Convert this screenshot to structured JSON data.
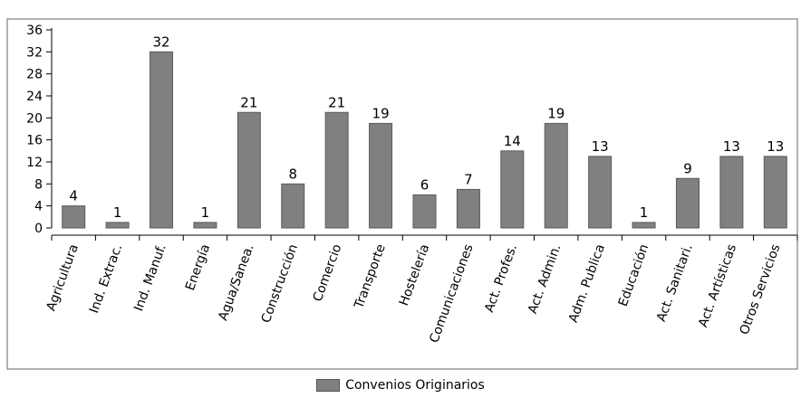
{
  "chart_data": {
    "type": "bar",
    "categories": [
      "Agricultura",
      "Ind. Extrac.",
      "Ind. Manuf.",
      "Energía",
      "Agua/Sanea.",
      "Construcción",
      "Comercio",
      "Transporte",
      "Hostelería",
      "Comunicaciones",
      "Act. Profes.",
      "Act. Admin.",
      "Adm. Publica",
      "Educación",
      "Act. Sanitari.",
      "Act. Artísticas",
      "Otros Servicios"
    ],
    "series": [
      {
        "name": "Convenios Originarios",
        "values": [
          4,
          1,
          32,
          1,
          21,
          8,
          21,
          19,
          6,
          7,
          14,
          19,
          13,
          1,
          9,
          13,
          13
        ]
      }
    ],
    "yticks": [
      0,
      4,
      8,
      12,
      16,
      20,
      24,
      28,
      32,
      36
    ],
    "ylim": [
      0,
      36
    ],
    "grid": false,
    "legend_position": "bottom-center",
    "colors": {
      "bar": "#808080",
      "bar_stroke": "#5a5a5a",
      "axis": "#000000",
      "frame": "#666666"
    }
  }
}
